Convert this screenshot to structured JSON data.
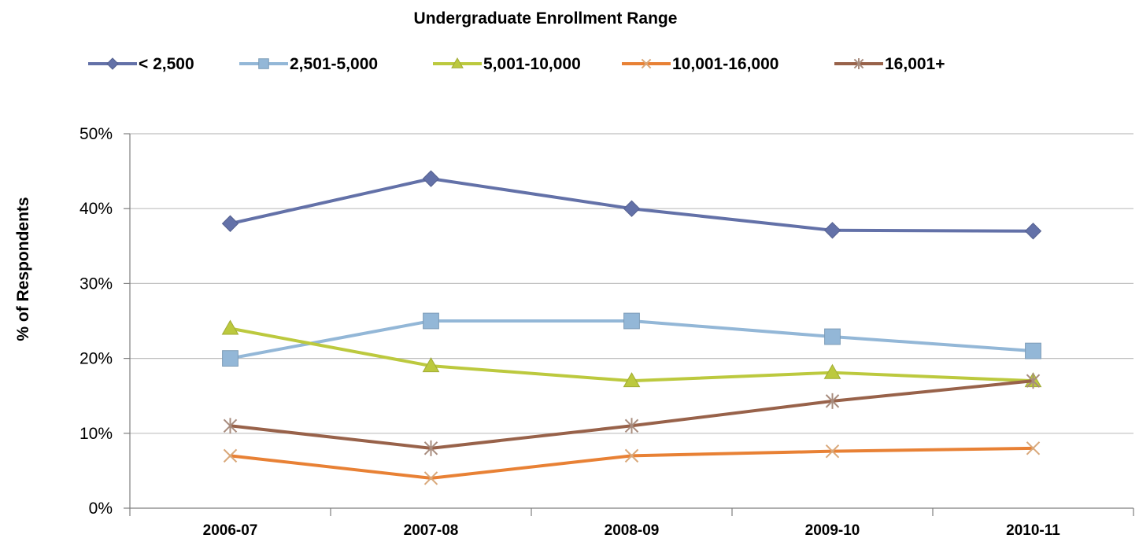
{
  "chart_data": {
    "type": "line",
    "title": "Undergraduate Enrollment Range",
    "xlabel": "",
    "ylabel": "% of Respondents",
    "categories": [
      "2006-07",
      "2007-08",
      "2008-09",
      "2009-10",
      "2010-11"
    ],
    "ylim": [
      0,
      50
    ],
    "yticks": [
      "0%",
      "10%",
      "20%",
      "30%",
      "40%",
      "50%"
    ],
    "grid": true,
    "legend_position": "top",
    "series": [
      {
        "name": "< 2,500",
        "values": [
          38,
          44,
          40,
          37.1,
          37
        ],
        "color": "#6371A8",
        "marker": "diamond"
      },
      {
        "name": "2,501-5,000",
        "values": [
          20,
          25,
          25,
          22.9,
          21
        ],
        "color": "#93B7D7",
        "marker": "square"
      },
      {
        "name": "5,001-10,000",
        "values": [
          24,
          19,
          17,
          18.1,
          17
        ],
        "color": "#BCC93E",
        "marker": "triangle"
      },
      {
        "name": "10,001-16,000",
        "values": [
          7,
          4,
          7,
          7.6,
          8
        ],
        "color": "#E88135",
        "marker": "x"
      },
      {
        "name": "16,001+",
        "values": [
          11,
          8,
          11,
          14.3,
          17
        ],
        "color": "#98624A",
        "marker": "star"
      }
    ]
  }
}
